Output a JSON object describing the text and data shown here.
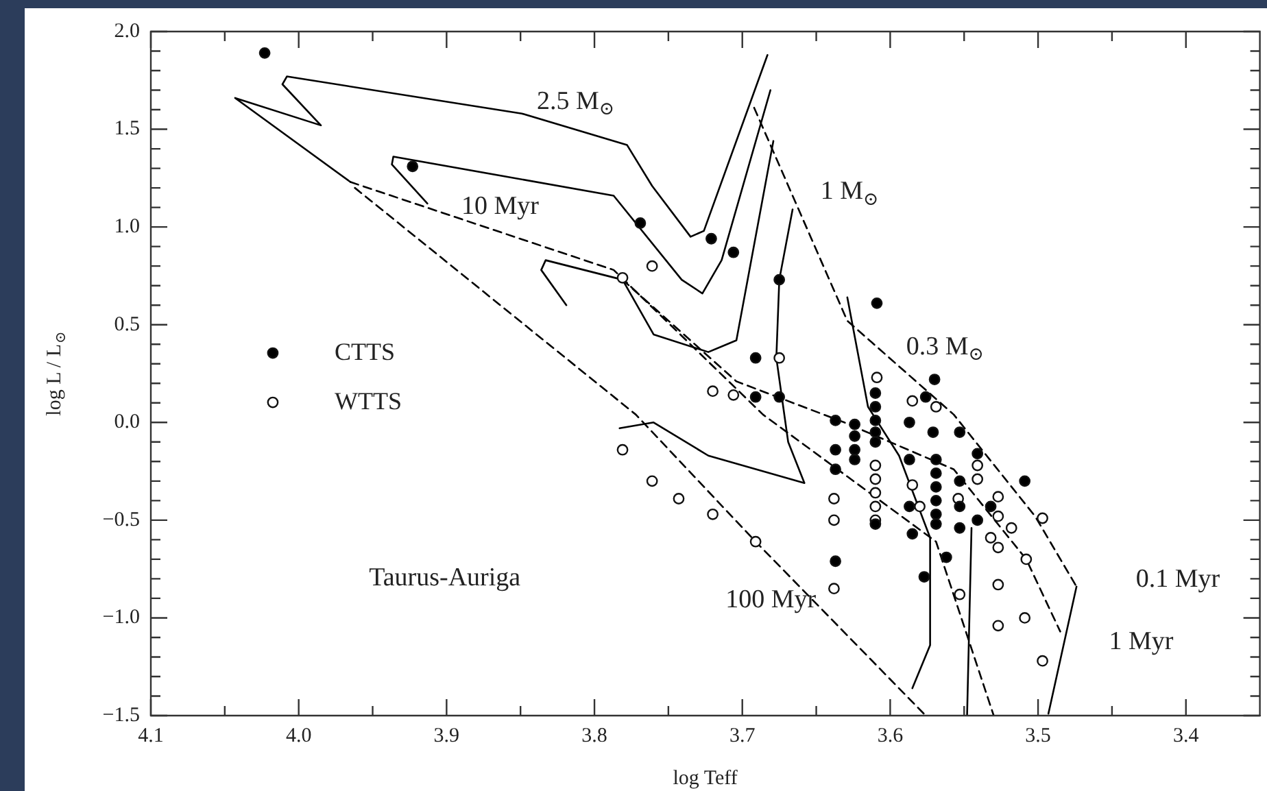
{
  "chart_data": {
    "type": "scatter",
    "xlabel": "log Teff",
    "ylabel": "log L / L$_{⊙}$",
    "xlim": [
      4.1,
      3.35
    ],
    "ylim": [
      -1.5,
      2.0
    ],
    "xticks": [
      {
        "value": 4.1,
        "label": "4.1"
      },
      {
        "value": 4.05,
        "label": null
      },
      {
        "value": 4.0,
        "label": "4.0"
      },
      {
        "value": 3.95,
        "label": null
      },
      {
        "value": 3.9,
        "label": "3.9"
      },
      {
        "value": 3.85,
        "label": null
      },
      {
        "value": 3.8,
        "label": "3.8"
      },
      {
        "value": 3.75,
        "label": null
      },
      {
        "value": 3.7,
        "label": "3.7"
      },
      {
        "value": 3.65,
        "label": null
      },
      {
        "value": 3.6,
        "label": "3.6"
      },
      {
        "value": 3.55,
        "label": null
      },
      {
        "value": 3.5,
        "label": "3.5"
      },
      {
        "value": 3.45,
        "label": null
      },
      {
        "value": 3.4,
        "label": "3.4"
      }
    ],
    "yticks": [
      {
        "value": -1.5,
        "label": "−1.5"
      },
      {
        "value": -1.4,
        "label": null
      },
      {
        "value": -1.3,
        "label": null
      },
      {
        "value": -1.2,
        "label": null
      },
      {
        "value": -1.1,
        "label": null
      },
      {
        "value": -1.0,
        "label": "−1.0"
      },
      {
        "value": -0.9,
        "label": null
      },
      {
        "value": -0.8,
        "label": null
      },
      {
        "value": -0.7,
        "label": null
      },
      {
        "value": -0.6,
        "label": null
      },
      {
        "value": -0.5,
        "label": "−0.5"
      },
      {
        "value": -0.4,
        "label": null
      },
      {
        "value": -0.3,
        "label": null
      },
      {
        "value": -0.2,
        "label": null
      },
      {
        "value": -0.1,
        "label": null
      },
      {
        "value": 0.0,
        "label": "0.0"
      },
      {
        "value": 0.1,
        "label": null
      },
      {
        "value": 0.2,
        "label": null
      },
      {
        "value": 0.3,
        "label": null
      },
      {
        "value": 0.4,
        "label": null
      },
      {
        "value": 0.5,
        "label": "0.5"
      },
      {
        "value": 0.6,
        "label": null
      },
      {
        "value": 0.7,
        "label": null
      },
      {
        "value": 0.8,
        "label": null
      },
      {
        "value": 0.9,
        "label": null
      },
      {
        "value": 1.0,
        "label": "1.0"
      },
      {
        "value": 1.1,
        "label": null
      },
      {
        "value": 1.2,
        "label": null
      },
      {
        "value": 1.3,
        "label": null
      },
      {
        "value": 1.4,
        "label": null
      },
      {
        "value": 1.5,
        "label": "1.5"
      },
      {
        "value": 1.6,
        "label": null
      },
      {
        "value": 1.7,
        "label": null
      },
      {
        "value": 1.8,
        "label": null
      },
      {
        "value": 1.9,
        "label": null
      },
      {
        "value": 2.0,
        "label": "2.0"
      }
    ],
    "grid": false,
    "legend": "left",
    "series": [
      {
        "name": "CTTS",
        "marker": "circle",
        "color": "#000000",
        "x": [
          4.023,
          3.923,
          3.769,
          3.721,
          3.706,
          3.675,
          3.609,
          3.691,
          3.57,
          3.691,
          3.675,
          3.61,
          3.637,
          3.624,
          3.624,
          3.624,
          3.624,
          3.637,
          3.637,
          3.637,
          3.61,
          3.61,
          3.61,
          3.61,
          3.61,
          3.587,
          3.587,
          3.587,
          3.585,
          3.576,
          3.571,
          3.569,
          3.569,
          3.569,
          3.569,
          3.569,
          3.569,
          3.562,
          3.553,
          3.553,
          3.553,
          3.553,
          3.541,
          3.541,
          3.532,
          3.509,
          3.577
        ],
        "values": [
          1.89,
          1.31,
          1.02,
          0.94,
          0.87,
          0.73,
          0.61,
          0.33,
          0.22,
          0.13,
          0.13,
          0.15,
          0.01,
          -0.01,
          -0.07,
          -0.14,
          -0.19,
          -0.14,
          -0.24,
          -0.71,
          0.08,
          0.01,
          -0.05,
          -0.1,
          -0.52,
          0.0,
          -0.19,
          -0.43,
          -0.57,
          0.13,
          -0.05,
          -0.19,
          -0.26,
          -0.33,
          -0.4,
          -0.47,
          -0.52,
          -0.69,
          -0.05,
          -0.3,
          -0.43,
          -0.54,
          -0.16,
          -0.5,
          -0.43,
          -0.3,
          -0.79
        ]
      },
      {
        "name": "WTTS",
        "marker": "circle",
        "color": "#ffffff",
        "x": [
          3.761,
          3.781,
          3.675,
          3.72,
          3.706,
          3.781,
          3.761,
          3.743,
          3.72,
          3.691,
          3.638,
          3.638,
          3.638,
          3.61,
          3.61,
          3.61,
          3.61,
          3.61,
          3.609,
          3.585,
          3.569,
          3.585,
          3.58,
          3.554,
          3.541,
          3.541,
          3.527,
          3.527,
          3.518,
          3.532,
          3.527,
          3.508,
          3.497,
          3.553,
          3.527,
          3.527,
          3.509,
          3.497
        ],
        "values": [
          0.8,
          0.74,
          0.33,
          0.16,
          0.14,
          -0.14,
          -0.3,
          -0.39,
          -0.47,
          -0.61,
          -0.39,
          -0.5,
          -0.85,
          -0.22,
          -0.29,
          -0.36,
          -0.43,
          -0.5,
          0.23,
          0.11,
          0.08,
          -0.32,
          -0.43,
          -0.39,
          -0.22,
          -0.29,
          -0.38,
          -0.48,
          -0.54,
          -0.59,
          -0.64,
          -0.7,
          -0.49,
          -0.88,
          -0.83,
          -1.04,
          -1.0,
          -1.22
        ]
      },
      {
        "type": "line",
        "color": "#000000",
        "line_style": "solid",
        "x": [
          3.683,
          3.726,
          3.735,
          3.761,
          3.778,
          3.849,
          4.008,
          4.011,
          3.985,
          4.043,
          3.965
        ],
        "values": [
          1.88,
          0.98,
          0.95,
          1.21,
          1.42,
          1.58,
          1.77,
          1.73,
          1.52,
          1.66,
          1.23
        ]
      },
      {
        "type": "line",
        "color": "#000000",
        "line_style": "solid",
        "x": [
          3.681,
          3.714,
          3.727,
          3.741,
          3.787,
          3.936,
          3.937,
          3.913
        ],
        "values": [
          1.7,
          0.83,
          0.66,
          0.73,
          1.16,
          1.36,
          1.32,
          1.12
        ]
      },
      {
        "type": "line",
        "color": "#000000",
        "line_style": "solid",
        "x": [
          3.679,
          3.704,
          3.723,
          3.76,
          3.781,
          3.833,
          3.836,
          3.819
        ],
        "values": [
          1.44,
          0.42,
          0.36,
          0.45,
          0.73,
          0.83,
          0.78,
          0.6
        ]
      },
      {
        "type": "line",
        "color": "#000000",
        "line_style": "solid",
        "x": [
          3.666,
          3.675,
          3.677,
          3.669,
          3.658,
          3.723,
          3.76,
          3.783
        ],
        "values": [
          1.09,
          0.73,
          0.33,
          -0.1,
          -0.31,
          -0.17,
          0.0,
          -0.03
        ]
      },
      {
        "type": "line",
        "color": "#000000",
        "line_style": "solid",
        "x": [
          3.629,
          3.615,
          3.594,
          3.573,
          3.573,
          3.585
        ],
        "values": [
          0.64,
          0.08,
          -0.17,
          -0.59,
          -1.14,
          -1.36
        ]
      },
      {
        "type": "line",
        "color": "#000000",
        "line_style": "solid",
        "x": [
          3.545,
          3.548
        ],
        "values": [
          -0.54,
          -1.5
        ]
      },
      {
        "type": "line",
        "color": "#000000",
        "line_style": "solid",
        "x": [
          3.474,
          3.493
        ],
        "values": [
          -0.84,
          -1.49
        ]
      },
      {
        "type": "line",
        "color": "#000000",
        "line_style": "dashed",
        "x": [
          3.692,
          3.629,
          3.557,
          3.502,
          3.474
        ],
        "values": [
          1.61,
          0.52,
          0.04,
          -0.48,
          -0.84
        ]
      },
      {
        "type": "line",
        "color": "#000000",
        "line_style": "dashed",
        "x": [
          3.781,
          3.704,
          3.631,
          3.557,
          3.508,
          3.485
        ],
        "values": [
          0.73,
          0.21,
          0.0,
          -0.24,
          -0.7,
          -1.07
        ]
      },
      {
        "type": "line",
        "color": "#000000",
        "line_style": "dashed",
        "x": [
          3.965,
          3.787,
          3.686,
          3.569,
          3.53
        ],
        "values": [
          1.23,
          0.78,
          0.04,
          -0.61,
          -1.5
        ]
      },
      {
        "type": "line",
        "color": "#000000",
        "line_style": "dashed",
        "x": [
          3.962,
          3.772,
          3.691,
          3.576
        ],
        "values": [
          1.2,
          0.04,
          -0.61,
          -1.5
        ]
      }
    ],
    "annotations": [
      "2.5 M$_{⊙}$",
      "10 Myr",
      "1 M$_{⊙}$",
      "0.3 M$_{⊙}$",
      "0.1 Myr",
      "1 Myr",
      "100 Myr",
      "Taurus-Auriga"
    ]
  }
}
